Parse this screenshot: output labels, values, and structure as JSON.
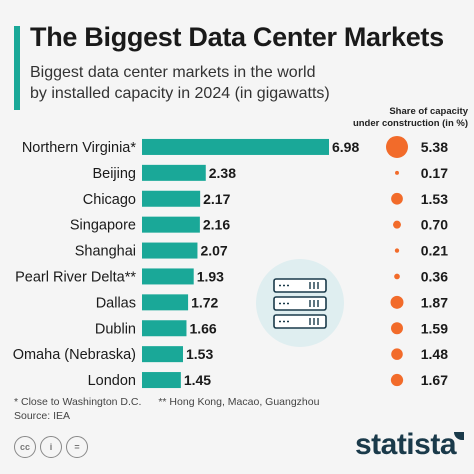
{
  "title": "The Biggest Data Center Markets",
  "subtitle_line1": "Biggest data center markets in the world",
  "subtitle_line2": "by installed capacity in 2024 (in gigawatts)",
  "share_header_line1": "Share of capacity",
  "share_header_line2": "under construction (in %)",
  "footnote_1": "* Close to Washington D.C.",
  "footnote_2": "** Hong Kong, Macao, Guangzhou",
  "source": "Source: IEA",
  "brand": "statista",
  "colors": {
    "bar": "#1aa898",
    "dot": "#f26b2a",
    "accent": "#1aa898",
    "brand": "#1a3a4a"
  },
  "chart_data": {
    "type": "bar",
    "orientation": "horizontal",
    "title": "The Biggest Data Center Markets",
    "categories": [
      "Northern Virginia*",
      "Beijing",
      "Chicago",
      "Singapore",
      "Shanghai",
      "Pearl River Delta**",
      "Dallas",
      "Dublin",
      "Omaha (Nebraska)",
      "London"
    ],
    "series": [
      {
        "values": [
          6.98,
          2.38,
          2.17,
          2.16,
          2.07,
          1.93,
          1.72,
          1.66,
          1.53,
          1.45
        ]
      },
      {
        "name": "Share of capacity under construction (in %)",
        "values": [
          5.38,
          0.17,
          1.53,
          0.7,
          0.21,
          0.36,
          1.87,
          1.59,
          1.48,
          1.67
        ]
      }
    ],
    "value_labels": [
      "6.98",
      "2.38",
      "2.17",
      "2.16",
      "2.07",
      "1.93",
      "1.72",
      "1.66",
      "1.53",
      "1.45"
    ],
    "share_labels": [
      "5.38",
      "0.17",
      "1.53",
      "0.70",
      "0.21",
      "0.36",
      "1.87",
      "1.59",
      "1.48",
      "1.67"
    ]
  }
}
